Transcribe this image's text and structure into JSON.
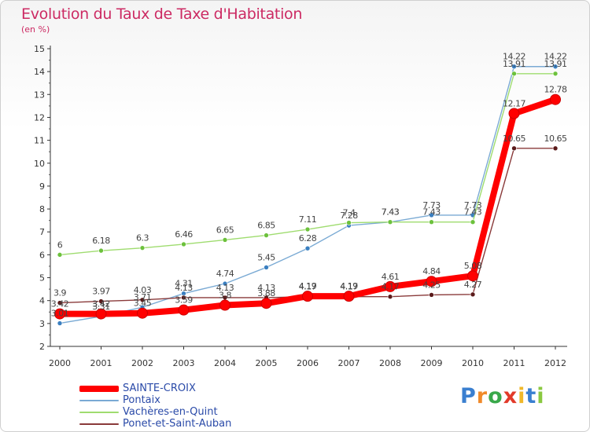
{
  "header": {
    "title": "Evolution du Taux de Taxe d'Habitation",
    "subtitle": "(en %)"
  },
  "brand": {
    "letters": [
      "P",
      "r",
      "o",
      "x",
      "i",
      "t",
      "i"
    ],
    "colors": [
      "#3a7fd0",
      "#f08a2a",
      "#39a84a",
      "#e23a2a",
      "#f0b82a",
      "#3a7fd0",
      "#8ac840"
    ]
  },
  "chart_data": {
    "type": "line",
    "title": "Evolution du Taux de Taxe d'Habitation",
    "subtitle": "(en %)",
    "xlabel": "",
    "ylabel": "",
    "categories": [
      "2000",
      "2001",
      "2002",
      "2003",
      "2004",
      "2005",
      "2006",
      "2007",
      "2008",
      "2009",
      "2010",
      "2011",
      "2012"
    ],
    "ylim": [
      2,
      15
    ],
    "y_ticks": [
      "2",
      "3",
      "4",
      "5",
      "6",
      "7",
      "8",
      "9",
      "10",
      "11",
      "12",
      "13",
      "14",
      "15"
    ],
    "grid": false,
    "legend_position": "bottom-left",
    "series": [
      {
        "name": "SAINTE-CROIX",
        "color": "#ff0000",
        "point_color": "#cc0000",
        "emphasis": true,
        "values": [
          3.42,
          3.42,
          3.45,
          3.59,
          3.8,
          3.88,
          4.19,
          4.19,
          4.61,
          4.84,
          5.08,
          12.17,
          12.78
        ],
        "labels": [
          "3.42",
          "3.42",
          "3.45",
          "3.59",
          "3.8",
          "3.88",
          "4.19",
          "4.19",
          "4.61",
          "4.84",
          "5.08",
          "12.17",
          "12.78"
        ]
      },
      {
        "name": "Pontaix",
        "color": "#7aaad4",
        "point_color": "#3a7fc0",
        "emphasis": false,
        "values": [
          3.01,
          3.31,
          3.71,
          4.31,
          4.74,
          5.45,
          6.28,
          7.28,
          7.43,
          7.73,
          7.73,
          14.22,
          14.22
        ],
        "labels": [
          "3.01",
          "3.31",
          "3.71",
          "4.31",
          "4.74",
          "5.45",
          "6.28",
          "7.28",
          "7.43",
          "7.73",
          "7.73",
          "14.22",
          "14.22"
        ]
      },
      {
        "name": "Vachères-en-Quint",
        "color": "#9fdc6f",
        "point_color": "#6cc13c",
        "emphasis": false,
        "values": [
          6,
          6.18,
          6.3,
          6.46,
          6.65,
          6.85,
          7.11,
          7.4,
          7.43,
          7.43,
          7.43,
          13.91,
          13.91
        ],
        "labels": [
          "6",
          "6.18",
          "6.3",
          "6.46",
          "6.65",
          "6.85",
          "7.11",
          "7.4",
          "7.43",
          "7.43",
          "7.43",
          "13.91",
          "13.91"
        ]
      },
      {
        "name": "Ponet-et-Saint-Auban",
        "color": "#8a3a3a",
        "point_color": "#5a1a1a",
        "emphasis": false,
        "values": [
          3.9,
          3.97,
          4.03,
          4.13,
          4.13,
          4.13,
          4.17,
          4.17,
          4.17,
          4.25,
          4.27,
          10.65,
          10.65
        ],
        "labels": [
          "3.9",
          "3.97",
          "4.03",
          "4.13",
          "4.13",
          "4.13",
          "4.17",
          "4.17",
          "4.17",
          "4.25",
          "4.27",
          "10.65",
          "10.65"
        ]
      }
    ]
  }
}
